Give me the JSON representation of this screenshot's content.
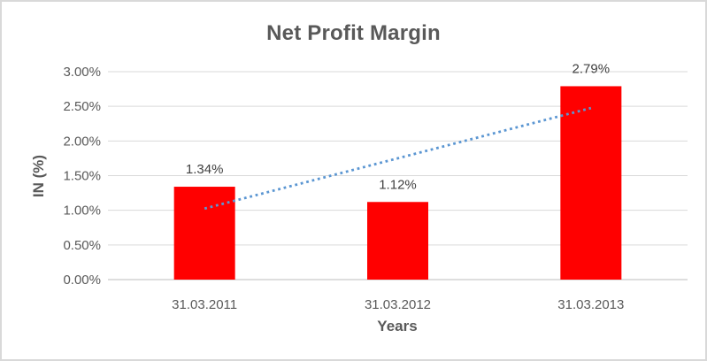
{
  "chart_data": {
    "type": "bar",
    "title": "Net Profit Margin",
    "xlabel": "Years",
    "ylabel": "IN (%)",
    "categories": [
      "31.03.2011",
      "31.03.2012",
      "31.03.2013"
    ],
    "values": [
      1.34,
      1.12,
      2.79
    ],
    "data_labels": [
      "1.34%",
      "1.12%",
      "2.79%"
    ],
    "ylim": [
      0,
      3
    ],
    "ytick_step": 0.5,
    "ytick_labels": [
      "0.00%",
      "0.50%",
      "1.00%",
      "1.50%",
      "2.00%",
      "2.50%",
      "3.00%"
    ],
    "grid": true,
    "legend": "none",
    "bar_color": "#ff0000",
    "trendline": {
      "type": "linear",
      "style": "dotted",
      "color": "#5b96d2",
      "start_value": 1.025,
      "end_value": 2.475
    },
    "colors": {
      "gridline": "#d9d9d9",
      "axis_line": "#c9c9c9",
      "tick_text": "#595959",
      "data_label_text": "#404040",
      "title_text": "#595959",
      "background": "#ffffff",
      "border": "#d9d9d9"
    }
  }
}
